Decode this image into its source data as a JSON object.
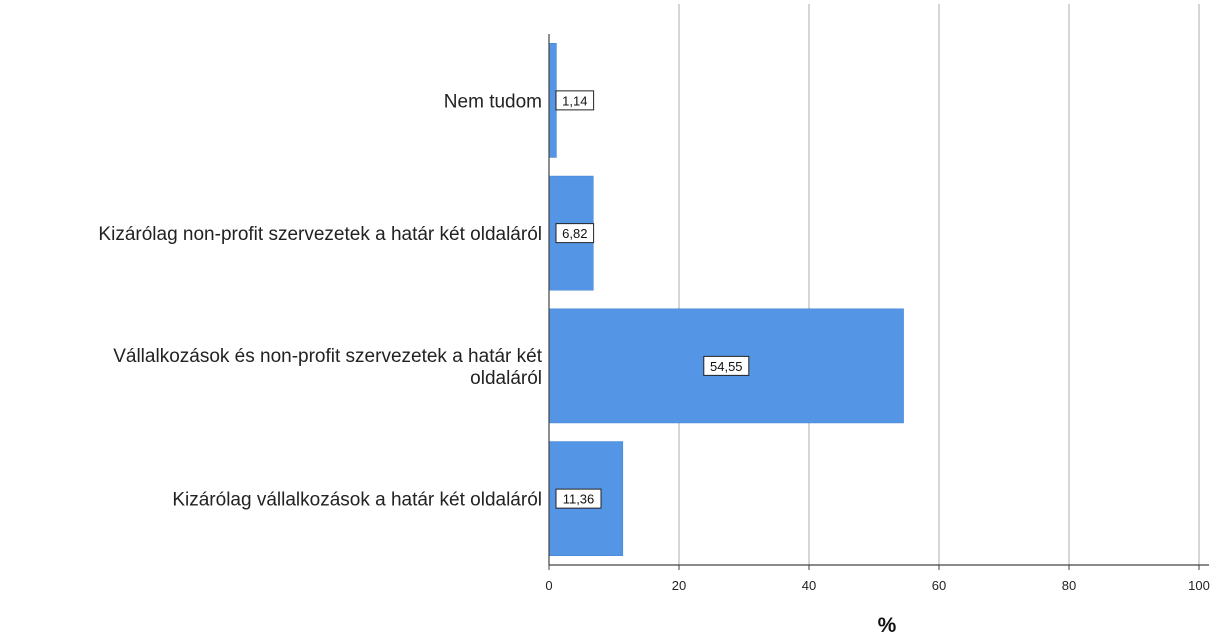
{
  "chart_data": {
    "type": "bar",
    "orientation": "horizontal",
    "title": "",
    "categories": [
      "Nem tudom",
      "Kizárólag non-profit szervezetek a határ két oldaláról",
      "Vállalkozások és non-profit szervezetek a határ két oldaláról",
      "Kizárólag vállalkozások a határ két oldaláról"
    ],
    "category_lines": [
      [
        "Nem tudom"
      ],
      [
        "Kizárólag non-profit szervezetek a határ két oldaláról"
      ],
      [
        "Vállalkozások és non-profit szervezetek a határ két",
        "oldaláról"
      ],
      [
        "Kizárólag vállalkozások a határ két oldaláról"
      ]
    ],
    "values": [
      1.14,
      6.82,
      54.55,
      11.36
    ],
    "value_labels": [
      "1,14",
      "6,82",
      "54,55",
      "11,36"
    ],
    "xlabel": "%",
    "ylabel": "",
    "xlim": [
      0,
      100
    ],
    "xticks": [
      0,
      20,
      40,
      60,
      80,
      100
    ],
    "grid": true,
    "legend": "none",
    "colors": {
      "bar": "#5595e5",
      "bar_edge": "#3f7fd0",
      "grid": "#c8c8c8",
      "axis": "#444444"
    }
  }
}
